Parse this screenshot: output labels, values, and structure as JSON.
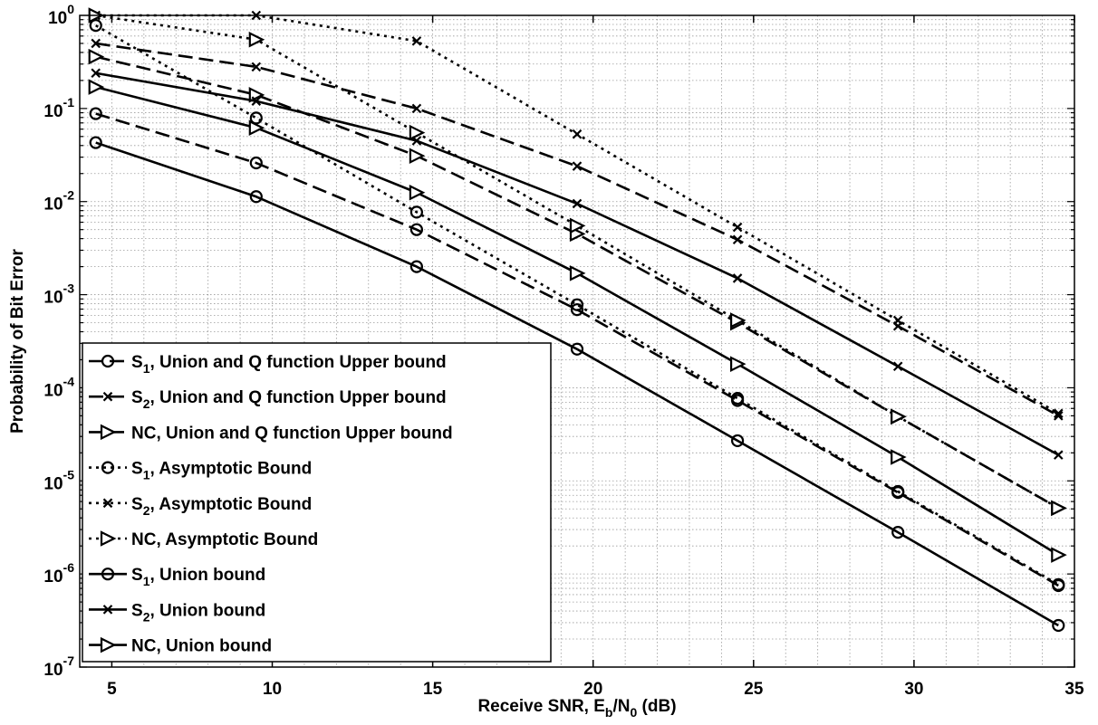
{
  "chart_data": {
    "type": "line",
    "title": "",
    "xlabel": "Receive SNR, E_b/N_0 (dB)",
    "xlabel_parts": {
      "pre": "Receive SNR, E",
      "sub1": "b",
      "mid": "/N",
      "sub2": "0",
      "post": " (dB)"
    },
    "ylabel": "Probability of Bit Error",
    "xlim": [
      4,
      35
    ],
    "ylim": [
      1e-07,
      1
    ],
    "yscale": "log",
    "grid": true,
    "legend_position": "bottom-left",
    "x_ticks": [
      "5",
      "10",
      "15",
      "20",
      "25",
      "30",
      "35"
    ],
    "y_ticks": [
      {
        "base": "10",
        "exp": "0"
      },
      {
        "base": "10",
        "exp": "-1"
      },
      {
        "base": "10",
        "exp": "-2"
      },
      {
        "base": "10",
        "exp": "-3"
      },
      {
        "base": "10",
        "exp": "-4"
      },
      {
        "base": "10",
        "exp": "-5"
      },
      {
        "base": "10",
        "exp": "-6"
      },
      {
        "base": "10",
        "exp": "-7"
      }
    ],
    "x": [
      4.5,
      9.5,
      14.5,
      19.5,
      24.5,
      29.5,
      34.5
    ],
    "series": [
      {
        "name": "S_1, Union and Q function Upper bound",
        "label_prefix": "S",
        "label_sub": "1",
        "label_rest": ", Union and Q function Upper bound",
        "style": "dashed",
        "marker": "circle",
        "values": [
          0.088,
          0.026,
          0.005,
          0.00069,
          7.3e-05,
          7.5e-06,
          7.5e-07
        ]
      },
      {
        "name": "S_2, Union and Q function Upper bound",
        "label_prefix": "S",
        "label_sub": "2",
        "label_rest": ", Union and Q function Upper bound",
        "style": "dashed",
        "marker": "x",
        "values": [
          0.5,
          0.28,
          0.1,
          0.024,
          0.0039,
          0.00046,
          5e-05
        ]
      },
      {
        "name": "NC, Union and Q function Upper bound",
        "label_prefix": "NC",
        "label_sub": "",
        "label_rest": ", Union and Q function Upper bound",
        "style": "dashed",
        "marker": "triangle",
        "values": [
          0.36,
          0.14,
          0.031,
          0.0045,
          0.0005,
          4.9e-05,
          5.1e-06
        ]
      },
      {
        "name": "S_1, Asymptotic Bound",
        "label_prefix": "S",
        "label_sub": "1",
        "label_rest": ", Asymptotic Bound",
        "style": "dotted",
        "marker": "circle",
        "values": [
          0.78,
          0.079,
          0.0077,
          0.00078,
          7.7e-05,
          7.7e-06,
          7.7e-07
        ]
      },
      {
        "name": "S_2, Asymptotic Bound",
        "label_prefix": "S",
        "label_sub": "2",
        "label_rest": ", Asymptotic Bound",
        "style": "dotted",
        "marker": "x",
        "values": [
          1.0,
          1.0,
          0.53,
          0.053,
          0.0053,
          0.00053,
          5.3e-05
        ]
      },
      {
        "name": "NC, Asymptotic Bound",
        "label_prefix": "NC",
        "label_sub": "",
        "label_rest": ", Asymptotic Bound",
        "style": "dotted",
        "marker": "triangle",
        "values": [
          1.0,
          0.55,
          0.055,
          0.0055,
          0.00053,
          4.9e-05,
          5.1e-06
        ]
      },
      {
        "name": "S_1, Union bound",
        "label_prefix": "S",
        "label_sub": "1",
        "label_rest": ", Union bound",
        "style": "solid",
        "marker": "circle",
        "values": [
          0.043,
          0.0113,
          0.002,
          0.00026,
          2.7e-05,
          2.8e-06,
          2.8e-07
        ]
      },
      {
        "name": "S_2, Union bound",
        "label_prefix": "S",
        "label_sub": "2",
        "label_rest": ", Union bound",
        "style": "solid",
        "marker": "x",
        "values": [
          0.24,
          0.12,
          0.045,
          0.0095,
          0.0015,
          0.00017,
          1.9e-05
        ]
      },
      {
        "name": "NC, Union bound",
        "label_prefix": "NC",
        "label_sub": "",
        "label_rest": ", Union bound",
        "style": "solid",
        "marker": "triangle",
        "values": [
          0.17,
          0.062,
          0.0125,
          0.0017,
          0.00018,
          1.8e-05,
          1.6e-06
        ]
      }
    ]
  }
}
